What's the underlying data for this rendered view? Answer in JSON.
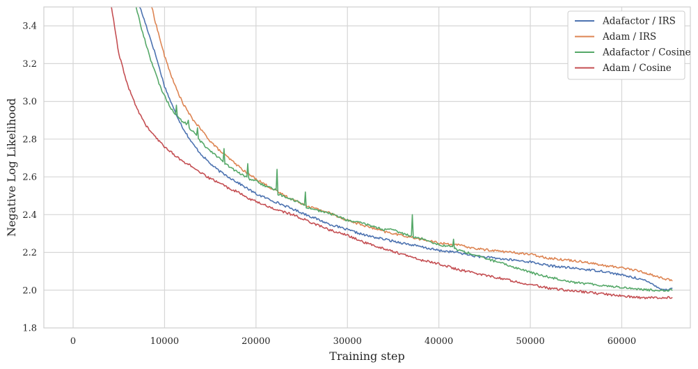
{
  "chart_data": {
    "type": "line",
    "xlabel": "Training step",
    "ylabel": "Negative Log Likelihood",
    "xlim": [
      -3200,
      67500
    ],
    "ylim": [
      1.8,
      3.5
    ],
    "xticks": [
      0,
      10000,
      20000,
      30000,
      40000,
      50000,
      60000
    ],
    "yticks": [
      1.8,
      2.0,
      2.2,
      2.4,
      2.6,
      2.8,
      3.0,
      3.2,
      3.4
    ],
    "grid": true,
    "legend": "top-right",
    "series": [
      {
        "name": "Adafactor / IRS",
        "color": "#4c72b0",
        "points": [
          [
            7300,
            3.5
          ],
          [
            8000,
            3.4
          ],
          [
            9000,
            3.25
          ],
          [
            10000,
            3.08
          ],
          [
            11000,
            2.96
          ],
          [
            12000,
            2.86
          ],
          [
            13000,
            2.78
          ],
          [
            14000,
            2.72
          ],
          [
            15000,
            2.67
          ],
          [
            16000,
            2.63
          ],
          [
            17000,
            2.6
          ],
          [
            18000,
            2.57
          ],
          [
            19000,
            2.54
          ],
          [
            20000,
            2.51
          ],
          [
            22000,
            2.47
          ],
          [
            24000,
            2.43
          ],
          [
            26000,
            2.39
          ],
          [
            28000,
            2.35
          ],
          [
            30000,
            2.32
          ],
          [
            32000,
            2.29
          ],
          [
            34000,
            2.27
          ],
          [
            36000,
            2.25
          ],
          [
            38000,
            2.23
          ],
          [
            40000,
            2.21
          ],
          [
            42000,
            2.2
          ],
          [
            44000,
            2.18
          ],
          [
            46000,
            2.17
          ],
          [
            48000,
            2.16
          ],
          [
            50000,
            2.15
          ],
          [
            52000,
            2.13
          ],
          [
            54000,
            2.12
          ],
          [
            56000,
            2.11
          ],
          [
            58000,
            2.1
          ],
          [
            60000,
            2.08
          ],
          [
            62000,
            2.06
          ],
          [
            63500,
            2.03
          ],
          [
            64500,
            2.0
          ],
          [
            65500,
            2.01
          ]
        ]
      },
      {
        "name": "Adam / IRS",
        "color": "#dd8452",
        "points": [
          [
            8600,
            3.5
          ],
          [
            9000,
            3.42
          ],
          [
            10000,
            3.24
          ],
          [
            11000,
            3.1
          ],
          [
            12000,
            2.99
          ],
          [
            13000,
            2.91
          ],
          [
            14000,
            2.85
          ],
          [
            15000,
            2.79
          ],
          [
            16000,
            2.74
          ],
          [
            17000,
            2.7
          ],
          [
            18000,
            2.66
          ],
          [
            19000,
            2.62
          ],
          [
            20000,
            2.59
          ],
          [
            22000,
            2.53
          ],
          [
            24000,
            2.48
          ],
          [
            26000,
            2.44
          ],
          [
            28000,
            2.41
          ],
          [
            30000,
            2.37
          ],
          [
            32000,
            2.34
          ],
          [
            34000,
            2.31
          ],
          [
            36000,
            2.29
          ],
          [
            38000,
            2.27
          ],
          [
            40000,
            2.25
          ],
          [
            42000,
            2.24
          ],
          [
            44000,
            2.22
          ],
          [
            46000,
            2.21
          ],
          [
            48000,
            2.2
          ],
          [
            50000,
            2.19
          ],
          [
            52000,
            2.17
          ],
          [
            54000,
            2.16
          ],
          [
            56000,
            2.15
          ],
          [
            58000,
            2.13
          ],
          [
            60000,
            2.12
          ],
          [
            62000,
            2.1
          ],
          [
            64000,
            2.07
          ],
          [
            65500,
            2.05
          ]
        ]
      },
      {
        "name": "Adafactor / Cosine",
        "color": "#55a868",
        "points": [
          [
            6900,
            3.5
          ],
          [
            7500,
            3.38
          ],
          [
            8500,
            3.22
          ],
          [
            9500,
            3.08
          ],
          [
            10500,
            2.98
          ],
          [
            11200,
            2.93
          ],
          [
            11300,
            2.98
          ],
          [
            11400,
            2.92
          ],
          [
            12000,
            2.89
          ],
          [
            12500,
            2.88
          ],
          [
            12600,
            2.9
          ],
          [
            12700,
            2.86
          ],
          [
            13500,
            2.82
          ],
          [
            13600,
            2.86
          ],
          [
            13700,
            2.8
          ],
          [
            14500,
            2.76
          ],
          [
            15500,
            2.72
          ],
          [
            16400,
            2.68
          ],
          [
            16500,
            2.75
          ],
          [
            16600,
            2.67
          ],
          [
            17500,
            2.64
          ],
          [
            18500,
            2.61
          ],
          [
            19000,
            2.6
          ],
          [
            19100,
            2.67
          ],
          [
            19200,
            2.59
          ],
          [
            20000,
            2.58
          ],
          [
            21000,
            2.55
          ],
          [
            22200,
            2.53
          ],
          [
            22300,
            2.64
          ],
          [
            22400,
            2.51
          ],
          [
            23500,
            2.49
          ],
          [
            24500,
            2.47
          ],
          [
            25300,
            2.45
          ],
          [
            25400,
            2.52
          ],
          [
            25500,
            2.44
          ],
          [
            27000,
            2.42
          ],
          [
            28500,
            2.4
          ],
          [
            30000,
            2.37
          ],
          [
            32000,
            2.35
          ],
          [
            34000,
            2.32
          ],
          [
            35000,
            2.32
          ],
          [
            36000,
            2.3
          ],
          [
            37000,
            2.29
          ],
          [
            37100,
            2.4
          ],
          [
            37200,
            2.28
          ],
          [
            38500,
            2.27
          ],
          [
            40000,
            2.24
          ],
          [
            41500,
            2.23
          ],
          [
            41600,
            2.27
          ],
          [
            41700,
            2.22
          ],
          [
            43000,
            2.2
          ],
          [
            45000,
            2.17
          ],
          [
            47000,
            2.14
          ],
          [
            49000,
            2.11
          ],
          [
            51000,
            2.08
          ],
          [
            53000,
            2.06
          ],
          [
            55000,
            2.04
          ],
          [
            57000,
            2.03
          ],
          [
            59000,
            2.02
          ],
          [
            61000,
            2.01
          ],
          [
            63000,
            2.0
          ],
          [
            65500,
            2.0
          ]
        ]
      },
      {
        "name": "Adam / Cosine",
        "color": "#c44e52",
        "points": [
          [
            4200,
            3.5
          ],
          [
            5000,
            3.25
          ],
          [
            6000,
            3.08
          ],
          [
            7000,
            2.96
          ],
          [
            8000,
            2.87
          ],
          [
            9000,
            2.81
          ],
          [
            10000,
            2.76
          ],
          [
            11000,
            2.72
          ],
          [
            12000,
            2.68
          ],
          [
            12600,
            2.67
          ],
          [
            13000,
            2.65
          ],
          [
            14000,
            2.62
          ],
          [
            15000,
            2.59
          ],
          [
            16000,
            2.57
          ],
          [
            17000,
            2.54
          ],
          [
            18000,
            2.52
          ],
          [
            19000,
            2.49
          ],
          [
            20000,
            2.47
          ],
          [
            22000,
            2.43
          ],
          [
            24000,
            2.4
          ],
          [
            26000,
            2.36
          ],
          [
            28000,
            2.32
          ],
          [
            30000,
            2.29
          ],
          [
            32000,
            2.25
          ],
          [
            34000,
            2.22
          ],
          [
            36000,
            2.19
          ],
          [
            38000,
            2.16
          ],
          [
            40000,
            2.14
          ],
          [
            42000,
            2.11
          ],
          [
            44000,
            2.09
          ],
          [
            46000,
            2.07
          ],
          [
            48000,
            2.05
          ],
          [
            50000,
            2.03
          ],
          [
            52000,
            2.01
          ],
          [
            54000,
            2.0
          ],
          [
            56000,
            1.99
          ],
          [
            58000,
            1.98
          ],
          [
            60000,
            1.97
          ],
          [
            62000,
            1.96
          ],
          [
            65500,
            1.96
          ]
        ]
      }
    ]
  }
}
